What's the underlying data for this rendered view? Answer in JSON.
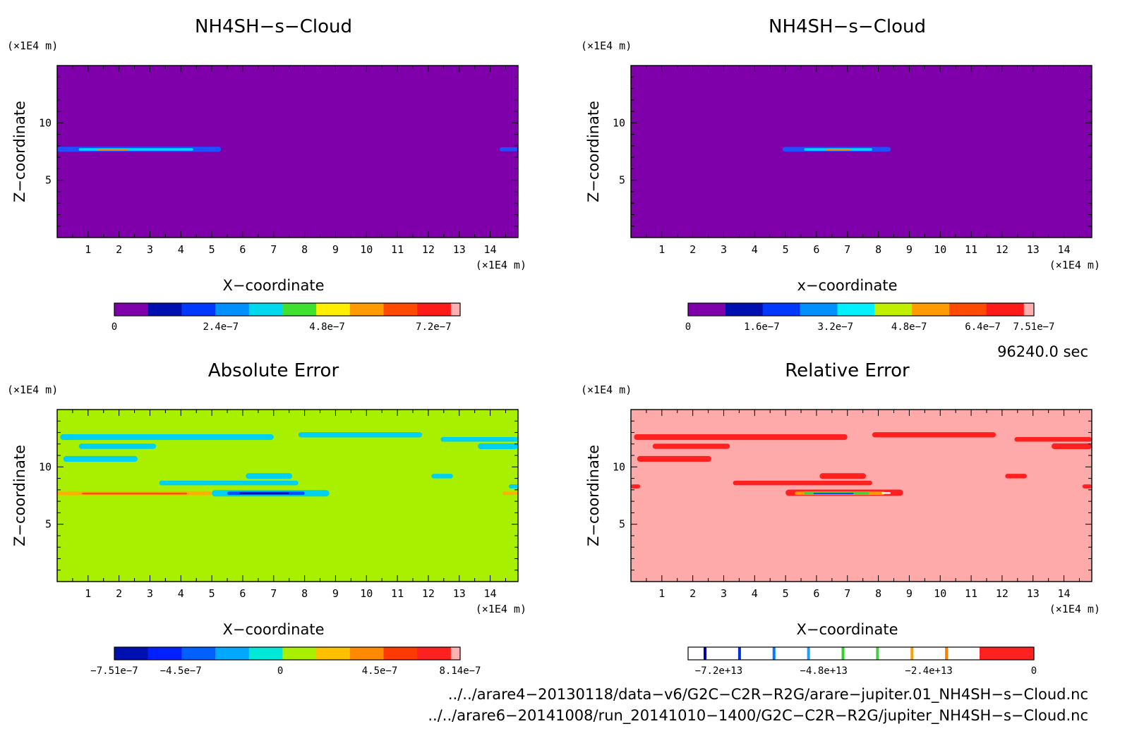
{
  "chart_data": [
    {
      "id": "p1",
      "type": "heatmap",
      "title": "NH4SH−s−Cloud",
      "xlabel": "X−coordinate",
      "ylabel": "Z−coordinate",
      "x_unit": "(×1E4 m)",
      "y_unit": "(×1E4 m)",
      "xlim": [
        0,
        14.9
      ],
      "ylim": [
        0,
        15
      ],
      "x_ticks": [
        1,
        2,
        3,
        4,
        5,
        6,
        7,
        8,
        9,
        10,
        11,
        12,
        13,
        14
      ],
      "y_ticks": [
        5,
        10
      ],
      "background_color": "#7f00aa",
      "features": [
        {
          "x0": 0.0,
          "x1": 5.3,
          "yc": 7.7,
          "h": 0.45,
          "color": "#1f4fff"
        },
        {
          "x0": 0.7,
          "x1": 4.4,
          "yc": 7.68,
          "h": 0.22,
          "color": "#00d8f0"
        },
        {
          "x0": 1.3,
          "x1": 2.3,
          "yc": 7.65,
          "h": 0.12,
          "color": "#ff8a00"
        },
        {
          "x0": 14.3,
          "x1": 14.9,
          "yc": 7.7,
          "h": 0.35,
          "color": "#1f4fff"
        }
      ],
      "colorbar": {
        "colors": [
          "#7f00aa",
          "#0010b0",
          "#0038ff",
          "#0090ff",
          "#00d8f0",
          "#40e030",
          "#ffee00",
          "#ff9a00",
          "#ff4a00",
          "#ff1a1a",
          "#ffb0b0"
        ],
        "tick_labels": [
          "0",
          "2.4e−7",
          "4.8e−7",
          "7.2e−7"
        ],
        "tick_values": [
          0,
          2.4e-07,
          4.8e-07,
          7.2e-07
        ],
        "range": [
          0,
          7.8e-07
        ]
      }
    },
    {
      "id": "p2",
      "type": "heatmap",
      "title": "NH4SH−s−Cloud",
      "xlabel": "x−coordinate",
      "ylabel": "Z−coordinate",
      "x_unit": "(×1E4 m)",
      "y_unit": "(×1E4 m)",
      "xlim": [
        0,
        14.9
      ],
      "ylim": [
        0,
        15
      ],
      "x_ticks": [
        1,
        2,
        3,
        4,
        5,
        6,
        7,
        8,
        9,
        10,
        11,
        12,
        13,
        14
      ],
      "y_ticks": [
        5,
        10
      ],
      "background_color": "#7f00aa",
      "features": [
        {
          "x0": 4.9,
          "x1": 8.4,
          "yc": 7.7,
          "h": 0.42,
          "color": "#1f4fff"
        },
        {
          "x0": 5.6,
          "x1": 7.8,
          "yc": 7.68,
          "h": 0.22,
          "color": "#00d8f0"
        },
        {
          "x0": 6.3,
          "x1": 7.1,
          "yc": 7.65,
          "h": 0.12,
          "color": "#ff8a00"
        }
      ],
      "colorbar": {
        "colors": [
          "#7f00aa",
          "#0010b0",
          "#0038ff",
          "#0090ff",
          "#00f0ff",
          "#c0f000",
          "#ff9a00",
          "#ff4a00",
          "#ff1a1a",
          "#ffb0b0"
        ],
        "tick_labels": [
          "0",
          "1.6e−7",
          "3.2e−7",
          "4.8e−7",
          "6.4e−7",
          "7.51e−7"
        ],
        "tick_values": [
          0,
          1.6e-07,
          3.2e-07,
          4.8e-07,
          6.4e-07,
          7.51e-07
        ],
        "range": [
          0,
          7.51e-07
        ]
      }
    },
    {
      "id": "p3",
      "type": "heatmap",
      "title": "Absolute Error",
      "xlabel": "X−coordinate",
      "ylabel": "Z−coordinate",
      "x_unit": "(×1E4 m)",
      "y_unit": "(×1E4 m)",
      "xlim": [
        0,
        14.9
      ],
      "ylim": [
        0,
        15
      ],
      "x_ticks": [
        1,
        2,
        3,
        4,
        5,
        6,
        7,
        8,
        9,
        10,
        11,
        12,
        13,
        14
      ],
      "y_ticks": [
        5,
        10
      ],
      "background_color": "#a8f000",
      "features": [
        {
          "x0": 0.1,
          "x1": 7.0,
          "yc": 12.6,
          "h": 0.5,
          "color": "#00d0f0"
        },
        {
          "x0": 7.8,
          "x1": 11.8,
          "yc": 12.8,
          "h": 0.45,
          "color": "#00d0f0"
        },
        {
          "x0": 12.4,
          "x1": 14.9,
          "yc": 12.4,
          "h": 0.4,
          "color": "#00d0f0"
        },
        {
          "x0": 0.7,
          "x1": 3.2,
          "yc": 11.8,
          "h": 0.45,
          "color": "#00d0f0"
        },
        {
          "x0": 13.6,
          "x1": 14.9,
          "yc": 11.8,
          "h": 0.5,
          "color": "#00d0f0"
        },
        {
          "x0": 0.2,
          "x1": 2.6,
          "yc": 10.7,
          "h": 0.5,
          "color": "#00d0f0"
        },
        {
          "x0": 6.1,
          "x1": 7.6,
          "yc": 9.2,
          "h": 0.5,
          "color": "#00d0f0"
        },
        {
          "x0": 3.3,
          "x1": 7.8,
          "yc": 8.6,
          "h": 0.4,
          "color": "#00d0f0"
        },
        {
          "x0": 12.1,
          "x1": 12.8,
          "yc": 9.2,
          "h": 0.4,
          "color": "#00d0f0"
        },
        {
          "x0": 5.0,
          "x1": 8.8,
          "yc": 7.7,
          "h": 0.55,
          "color": "#00d0f0"
        },
        {
          "x0": 5.5,
          "x1": 8.0,
          "yc": 7.7,
          "h": 0.3,
          "color": "#0050ff"
        },
        {
          "x0": 5.9,
          "x1": 7.5,
          "yc": 7.7,
          "h": 0.15,
          "color": "#0010b0"
        },
        {
          "x0": 0.0,
          "x1": 5.0,
          "yc": 7.7,
          "h": 0.35,
          "color": "#ffb000"
        },
        {
          "x0": 0.8,
          "x1": 4.2,
          "yc": 7.68,
          "h": 0.15,
          "color": "#ff4a00"
        },
        {
          "x0": 14.4,
          "x1": 14.9,
          "yc": 7.7,
          "h": 0.3,
          "color": "#ffb000"
        },
        {
          "x0": 14.6,
          "x1": 14.9,
          "yc": 8.3,
          "h": 0.35,
          "color": "#00d0f0"
        }
      ],
      "colorbar": {
        "colors": [
          "#0010b0",
          "#0020ff",
          "#0060ff",
          "#00a8ff",
          "#00e8d8",
          "#a8f000",
          "#ffc000",
          "#ff8a00",
          "#ff3a00",
          "#ff2020",
          "#ffb0b0"
        ],
        "tick_labels": [
          "−7.51e−7",
          "−4.5e−7",
          "0",
          "4.5e−7",
          "8.14e−7"
        ],
        "tick_values": [
          -7.51e-07,
          -4.5e-07,
          0,
          4.5e-07,
          8.14e-07
        ],
        "range": [
          -7.51e-07,
          8.14e-07
        ]
      }
    },
    {
      "id": "p4",
      "type": "heatmap",
      "title": "Relative Error",
      "xlabel": "X−coordinate",
      "ylabel": "Z−coordinate",
      "x_unit": "(×1E4 m)",
      "y_unit": "(×1E4 m)",
      "xlim": [
        0,
        14.9
      ],
      "ylim": [
        0,
        15
      ],
      "x_ticks": [
        1,
        2,
        3,
        4,
        5,
        6,
        7,
        8,
        9,
        10,
        11,
        12,
        13,
        14
      ],
      "y_ticks": [
        5,
        10
      ],
      "background_color": "#ffaaaa",
      "features": [
        {
          "x0": 0.1,
          "x1": 7.0,
          "yc": 12.6,
          "h": 0.5,
          "color": "#ff2020"
        },
        {
          "x0": 7.8,
          "x1": 11.8,
          "yc": 12.8,
          "h": 0.45,
          "color": "#ff2020"
        },
        {
          "x0": 12.4,
          "x1": 14.9,
          "yc": 12.4,
          "h": 0.4,
          "color": "#ff2020"
        },
        {
          "x0": 0.7,
          "x1": 3.2,
          "yc": 11.8,
          "h": 0.45,
          "color": "#ff2020"
        },
        {
          "x0": 13.6,
          "x1": 14.9,
          "yc": 11.8,
          "h": 0.5,
          "color": "#ff2020"
        },
        {
          "x0": 0.2,
          "x1": 2.6,
          "yc": 10.7,
          "h": 0.5,
          "color": "#ff2020"
        },
        {
          "x0": 6.1,
          "x1": 7.6,
          "yc": 9.2,
          "h": 0.5,
          "color": "#ff2020"
        },
        {
          "x0": 3.3,
          "x1": 7.8,
          "yc": 8.6,
          "h": 0.4,
          "color": "#ff2020"
        },
        {
          "x0": 12.1,
          "x1": 12.8,
          "yc": 9.2,
          "h": 0.4,
          "color": "#ff2020"
        },
        {
          "x0": 14.6,
          "x1": 14.9,
          "yc": 8.3,
          "h": 0.35,
          "color": "#ff2020"
        },
        {
          "x0": 0.0,
          "x1": 0.3,
          "yc": 8.3,
          "h": 0.35,
          "color": "#ff2020"
        },
        {
          "x0": 5.0,
          "x1": 8.8,
          "yc": 7.75,
          "h": 0.55,
          "color": "#ff2020"
        },
        {
          "x0": 5.3,
          "x1": 8.2,
          "yc": 7.7,
          "h": 0.3,
          "color": "#ff9a00"
        },
        {
          "x0": 5.6,
          "x1": 7.7,
          "yc": 7.7,
          "h": 0.2,
          "color": "#40d040"
        },
        {
          "x0": 5.9,
          "x1": 7.2,
          "yc": 7.68,
          "h": 0.12,
          "color": "#0050ff"
        },
        {
          "x0": 8.1,
          "x1": 8.4,
          "yc": 7.72,
          "h": 0.15,
          "color": "#ffffff"
        }
      ],
      "colorbar": {
        "colors": [
          "#0000a0",
          "#0030e0",
          "#0078ff",
          "#20c040",
          "#ffa000",
          "#ff9000",
          "#ff2020"
        ],
        "style": "lines",
        "tick_labels": [
          "−7.2e+13",
          "−4.8e+13",
          "−2.4e+13",
          "0"
        ],
        "tick_values": [
          -72000000000000.0,
          -48000000000000.0,
          -24000000000000.0,
          0
        ],
        "range": [
          -79000000000000.0,
          0
        ]
      }
    }
  ],
  "time_label": "96240.0 sec",
  "footer": {
    "file1": "../../arare4−20130118/data−v6/G2C−C2R−R2G/arare−jupiter.01_NH4SH−s−Cloud.nc",
    "file2": "../../arare6−20141008/run_20141010−1400/G2C−C2R−R2G/jupiter_NH4SH−s−Cloud.nc"
  }
}
